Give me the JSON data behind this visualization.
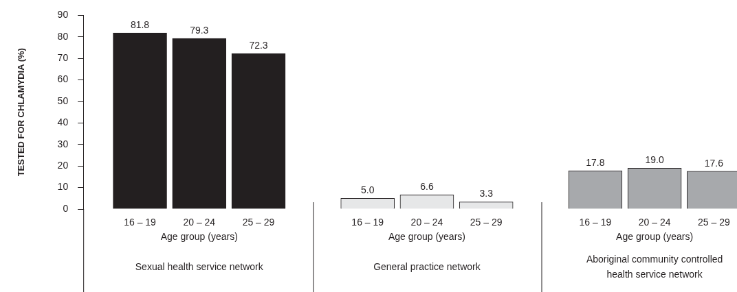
{
  "chart_data": {
    "type": "bar",
    "ylabel": "TESTED FOR CHLAMYDIA (%)",
    "xlabel": "Age group (years)",
    "categories": [
      "16 – 19",
      "20 – 24",
      "25 – 29",
      "16 – 19",
      "20 – 24",
      "25 – 29",
      "16 – 19",
      "20 – 24",
      "25 – 29"
    ],
    "values": [
      81.8,
      79.3,
      72.3,
      5.0,
      6.6,
      3.3,
      17.8,
      19.0,
      17.6
    ],
    "value_labels": [
      "81.8",
      "79.3",
      "72.3",
      "5.0",
      "6.6",
      "3.3",
      "17.8",
      "19.0",
      "17.6"
    ],
    "colors": [
      "#231f20",
      "#231f20",
      "#231f20",
      "#e6e7e8",
      "#e6e7e8",
      "#e6e7e8",
      "#a7a9ac",
      "#a7a9ac",
      "#a7a9ac"
    ],
    "ylim": [
      0,
      90
    ],
    "yticks": [
      0,
      10,
      20,
      30,
      40,
      50,
      60,
      70,
      80,
      90
    ],
    "grid": false,
    "legend": false,
    "annotations": [
      "Sexual health service network",
      "General practice network",
      "Aboriginal community controlled\nhealth service network"
    ]
  }
}
